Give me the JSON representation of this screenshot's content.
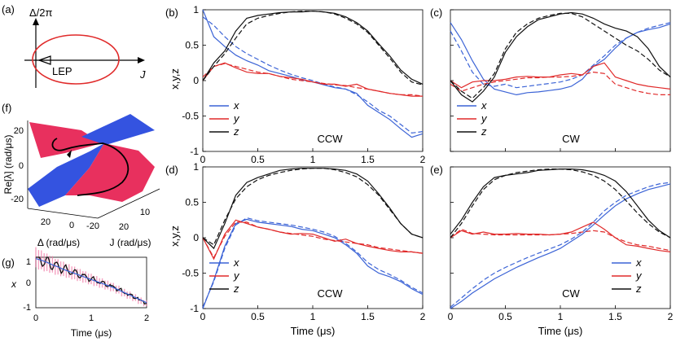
{
  "panel_labels": {
    "a": "(a)",
    "b": "(b)",
    "c": "(c)",
    "d": "(d)",
    "e": "(e)",
    "f": "(f)",
    "g": "(g)"
  },
  "colors": {
    "x": "#3b63d6",
    "y": "#e02a2a",
    "z": "#111111",
    "ellipse": "#e02a2a",
    "surface_red": "#e8305e",
    "surface_blue": "#3453e0",
    "pink": "#f07aa6"
  },
  "panel_a": {
    "ylabel": "Δ/2π",
    "xlabel": "J",
    "marker_label": "LEP"
  },
  "panel_f": {
    "zlabel": "Re[λ] (rad/μs)",
    "z_ticks": [
      "20",
      "0",
      "-20"
    ],
    "delta_ticks": [
      "20",
      "0",
      "-20"
    ],
    "j_ticks": [
      "10",
      "20"
    ],
    "delta_label": "Δ (rad/μs)",
    "j_label": "J (rad/μs)"
  },
  "panel_g": {
    "ylabel": "x",
    "xlabel": "Time (μs)",
    "y_ticks": [
      "1",
      "0",
      "-1"
    ],
    "x_ticks": [
      "0",
      "1",
      "2"
    ]
  },
  "chart_data": [
    {
      "id": "b",
      "type": "line",
      "direction_label": "CCW",
      "xlabel": "",
      "ylabel": "x,y,z",
      "xlim": [
        0,
        2
      ],
      "ylim": [
        -1,
        1
      ],
      "x_ticks": [
        "0",
        "0.5",
        "1",
        "1.5",
        "2"
      ],
      "y_ticks": [
        "1",
        "0.5",
        "0",
        "-0.5",
        "-1"
      ],
      "legend": [
        "x",
        "y",
        "z"
      ],
      "legend_position": "bottom-left",
      "x": [
        0,
        0.1,
        0.2,
        0.3,
        0.4,
        0.5,
        0.6,
        0.7,
        0.8,
        0.9,
        1.0,
        1.1,
        1.2,
        1.3,
        1.4,
        1.5,
        1.6,
        1.7,
        1.8,
        1.9,
        2.0
      ],
      "series": [
        {
          "name": "x",
          "style": "solid",
          "values": [
            1.0,
            0.62,
            0.48,
            0.36,
            0.28,
            0.22,
            0.14,
            0.1,
            0.06,
            0.01,
            -0.02,
            -0.06,
            -0.1,
            -0.12,
            -0.18,
            -0.35,
            -0.45,
            -0.55,
            -0.68,
            -0.8,
            -0.75
          ]
        },
        {
          "name": "x",
          "style": "dashed",
          "values": [
            0.9,
            0.78,
            0.62,
            0.48,
            0.38,
            0.3,
            0.22,
            0.15,
            0.09,
            0.04,
            0.0,
            -0.05,
            -0.09,
            -0.12,
            -0.2,
            -0.3,
            -0.42,
            -0.5,
            -0.62,
            -0.74,
            -0.72
          ]
        },
        {
          "name": "y",
          "style": "solid",
          "values": [
            0.0,
            0.2,
            0.25,
            0.18,
            0.12,
            0.1,
            0.1,
            0.06,
            0.04,
            0.02,
            -0.02,
            -0.05,
            -0.05,
            -0.08,
            -0.05,
            -0.12,
            -0.15,
            -0.18,
            -0.2,
            -0.22,
            -0.22
          ]
        },
        {
          "name": "y",
          "style": "dashed",
          "values": [
            0.05,
            0.2,
            0.24,
            0.2,
            0.16,
            0.12,
            0.1,
            0.06,
            0.02,
            0.0,
            -0.02,
            -0.04,
            -0.06,
            -0.07,
            -0.1,
            -0.12,
            -0.15,
            -0.18,
            -0.2,
            -0.2,
            -0.22
          ]
        },
        {
          "name": "z",
          "style": "solid",
          "values": [
            0.0,
            0.25,
            0.42,
            0.7,
            0.88,
            0.92,
            0.94,
            0.96,
            0.97,
            0.97,
            0.98,
            0.97,
            0.95,
            0.9,
            0.82,
            0.7,
            0.52,
            0.35,
            0.15,
            0.02,
            -0.05
          ]
        },
        {
          "name": "z",
          "style": "dashed",
          "values": [
            0.0,
            0.2,
            0.38,
            0.6,
            0.8,
            0.88,
            0.92,
            0.95,
            0.97,
            0.98,
            0.98,
            0.97,
            0.94,
            0.88,
            0.8,
            0.68,
            0.5,
            0.32,
            0.12,
            -0.02,
            -0.06
          ]
        }
      ]
    },
    {
      "id": "c",
      "type": "line",
      "direction_label": "CW",
      "xlabel": "",
      "ylabel": "",
      "xlim": [
        0,
        2
      ],
      "ylim": [
        -1,
        1
      ],
      "x_ticks": [],
      "y_ticks": [],
      "legend": [
        "x",
        "y",
        "z"
      ],
      "legend_position": "bottom-left",
      "x": [
        0,
        0.1,
        0.2,
        0.3,
        0.4,
        0.5,
        0.6,
        0.7,
        0.8,
        0.9,
        1.0,
        1.1,
        1.2,
        1.3,
        1.4,
        1.5,
        1.6,
        1.7,
        1.8,
        1.9,
        2.0
      ],
      "series": [
        {
          "name": "x",
          "style": "solid",
          "values": [
            0.82,
            0.58,
            0.28,
            0.02,
            -0.12,
            -0.16,
            -0.2,
            -0.17,
            -0.16,
            -0.14,
            -0.12,
            -0.08,
            0.02,
            0.2,
            0.3,
            0.46,
            0.6,
            0.68,
            0.72,
            0.75,
            0.8
          ]
        },
        {
          "name": "x",
          "style": "dashed",
          "values": [
            0.7,
            0.42,
            0.12,
            -0.05,
            -0.08,
            -0.05,
            -0.1,
            -0.08,
            -0.06,
            -0.04,
            -0.02,
            0.02,
            0.08,
            0.22,
            0.35,
            0.5,
            0.6,
            0.68,
            0.74,
            0.78,
            0.82
          ]
        },
        {
          "name": "y",
          "style": "solid",
          "values": [
            0.0,
            -0.1,
            -0.02,
            0.0,
            0.0,
            0.02,
            0.05,
            0.06,
            0.05,
            0.05,
            0.08,
            0.1,
            0.08,
            0.2,
            0.25,
            0.05,
            0.0,
            -0.05,
            -0.08,
            -0.1,
            -0.12
          ]
        },
        {
          "name": "y",
          "style": "dashed",
          "values": [
            -0.05,
            -0.15,
            -0.1,
            -0.05,
            -0.02,
            0.0,
            0.02,
            0.04,
            0.04,
            0.05,
            0.05,
            0.06,
            0.08,
            0.12,
            0.1,
            -0.05,
            -0.1,
            -0.15,
            -0.18,
            -0.2,
            -0.2
          ]
        },
        {
          "name": "z",
          "style": "solid",
          "values": [
            0.0,
            -0.2,
            -0.3,
            -0.15,
            0.05,
            0.4,
            0.62,
            0.76,
            0.86,
            0.9,
            0.94,
            0.96,
            0.94,
            0.88,
            0.8,
            0.74,
            0.7,
            0.62,
            0.45,
            0.2,
            0.05
          ]
        },
        {
          "name": "z",
          "style": "dashed",
          "values": [
            0.0,
            -0.15,
            -0.25,
            -0.1,
            0.1,
            0.45,
            0.68,
            0.8,
            0.88,
            0.92,
            0.95,
            0.95,
            0.9,
            0.8,
            0.7,
            0.6,
            0.5,
            0.42,
            0.3,
            0.15,
            0.05
          ]
        }
      ]
    },
    {
      "id": "d",
      "type": "line",
      "direction_label": "CCW",
      "xlabel": "Time (μs)",
      "ylabel": "x,y,z",
      "xlim": [
        0,
        2
      ],
      "ylim": [
        -1,
        1
      ],
      "x_ticks": [
        "0",
        "0.5",
        "1",
        "1.5",
        "2"
      ],
      "y_ticks": [
        "1",
        "0.5",
        "0",
        "-0.5",
        "-1"
      ],
      "legend": [
        "x",
        "y",
        "z"
      ],
      "legend_position": "bottom-left",
      "x": [
        0,
        0.1,
        0.2,
        0.3,
        0.4,
        0.5,
        0.6,
        0.7,
        0.8,
        0.9,
        1.0,
        1.1,
        1.2,
        1.3,
        1.4,
        1.5,
        1.6,
        1.7,
        1.8,
        1.9,
        2.0
      ],
      "series": [
        {
          "name": "x",
          "style": "solid",
          "values": [
            -1.0,
            -0.6,
            -0.12,
            0.2,
            0.26,
            0.22,
            0.2,
            0.18,
            0.16,
            0.12,
            0.1,
            0.05,
            0.0,
            -0.1,
            -0.22,
            -0.4,
            -0.5,
            -0.55,
            -0.62,
            -0.72,
            -0.8
          ]
        },
        {
          "name": "x",
          "style": "dashed",
          "values": [
            -0.98,
            -0.62,
            -0.15,
            0.18,
            0.28,
            0.24,
            0.22,
            0.2,
            0.18,
            0.15,
            0.12,
            0.08,
            0.02,
            -0.08,
            -0.2,
            -0.35,
            -0.45,
            -0.52,
            -0.6,
            -0.7,
            -0.78
          ]
        },
        {
          "name": "y",
          "style": "solid",
          "values": [
            0.0,
            -0.3,
            0.05,
            0.25,
            0.2,
            0.15,
            0.12,
            0.08,
            0.05,
            0.06,
            0.05,
            0.0,
            -0.05,
            -0.02,
            -0.08,
            -0.12,
            -0.15,
            -0.18,
            -0.2,
            -0.2,
            -0.22
          ]
        },
        {
          "name": "y",
          "style": "dashed",
          "values": [
            0.0,
            -0.28,
            0.02,
            0.22,
            0.22,
            0.15,
            0.12,
            0.08,
            0.06,
            0.04,
            0.02,
            -0.02,
            -0.04,
            -0.06,
            -0.08,
            -0.1,
            -0.14,
            -0.16,
            -0.18,
            -0.2,
            -0.22
          ]
        },
        {
          "name": "z",
          "style": "solid",
          "values": [
            0.0,
            -0.15,
            0.2,
            0.6,
            0.78,
            0.85,
            0.9,
            0.95,
            0.97,
            0.98,
            0.98,
            0.98,
            0.97,
            0.95,
            0.9,
            0.8,
            0.62,
            0.42,
            0.2,
            0.05,
            0.0
          ]
        },
        {
          "name": "z",
          "style": "dashed",
          "values": [
            0.0,
            -0.1,
            0.25,
            0.55,
            0.72,
            0.82,
            0.88,
            0.92,
            0.95,
            0.97,
            0.98,
            0.98,
            0.96,
            0.92,
            0.86,
            0.75,
            0.6,
            0.4,
            0.2,
            0.05,
            0.0
          ]
        }
      ]
    },
    {
      "id": "e",
      "type": "line",
      "direction_label": "CW",
      "xlabel": "Time (μs)",
      "ylabel": "",
      "xlim": [
        0,
        2
      ],
      "ylim": [
        -1,
        1
      ],
      "x_ticks": [
        "0",
        "0.5",
        "1",
        "1.5",
        "2"
      ],
      "y_ticks": [],
      "legend": [
        "x",
        "y",
        "z"
      ],
      "legend_position": "bottom-right",
      "x": [
        0,
        0.1,
        0.2,
        0.3,
        0.4,
        0.5,
        0.6,
        0.7,
        0.8,
        0.9,
        1.0,
        1.1,
        1.2,
        1.3,
        1.4,
        1.5,
        1.6,
        1.7,
        1.8,
        1.9,
        2.0
      ],
      "series": [
        {
          "name": "x",
          "style": "solid",
          "values": [
            -1.0,
            -0.9,
            -0.78,
            -0.68,
            -0.58,
            -0.5,
            -0.42,
            -0.35,
            -0.28,
            -0.22,
            -0.15,
            -0.05,
            0.05,
            0.18,
            0.32,
            0.45,
            0.55,
            0.62,
            0.68,
            0.72,
            0.76
          ]
        },
        {
          "name": "x",
          "style": "dashed",
          "values": [
            -0.98,
            -0.85,
            -0.72,
            -0.6,
            -0.5,
            -0.42,
            -0.35,
            -0.28,
            -0.22,
            -0.16,
            -0.1,
            -0.02,
            0.08,
            0.22,
            0.38,
            0.5,
            0.6,
            0.66,
            0.72,
            0.76,
            0.78
          ]
        },
        {
          "name": "y",
          "style": "solid",
          "values": [
            0.0,
            0.1,
            0.05,
            0.08,
            0.05,
            0.05,
            0.06,
            0.05,
            0.05,
            0.04,
            0.05,
            0.08,
            0.15,
            0.22,
            0.12,
            0.0,
            -0.1,
            -0.12,
            -0.15,
            -0.18,
            -0.2
          ]
        },
        {
          "name": "y",
          "style": "dashed",
          "values": [
            0.0,
            0.12,
            0.06,
            0.05,
            0.04,
            0.04,
            0.04,
            0.04,
            0.04,
            0.04,
            0.05,
            0.06,
            0.08,
            0.1,
            0.08,
            0.0,
            -0.06,
            -0.1,
            -0.12,
            -0.15,
            -0.18
          ]
        },
        {
          "name": "z",
          "style": "solid",
          "values": [
            0.05,
            0.25,
            0.5,
            0.72,
            0.85,
            0.88,
            0.9,
            0.92,
            0.95,
            0.96,
            0.97,
            0.97,
            0.96,
            0.93,
            0.88,
            0.8,
            0.65,
            0.45,
            0.25,
            0.1,
            0.0
          ]
        },
        {
          "name": "z",
          "style": "dashed",
          "values": [
            0.0,
            0.2,
            0.45,
            0.68,
            0.82,
            0.88,
            0.92,
            0.94,
            0.96,
            0.97,
            0.97,
            0.96,
            0.93,
            0.88,
            0.8,
            0.68,
            0.52,
            0.35,
            0.2,
            0.08,
            0.0
          ]
        }
      ]
    },
    {
      "id": "g",
      "type": "line",
      "xlabel": "Time (μs)",
      "ylabel": "x",
      "xlim": [
        0,
        2
      ],
      "ylim": [
        -1,
        1
      ],
      "x": [
        0,
        0.1,
        0.2,
        0.3,
        0.4,
        0.5,
        0.6,
        0.7,
        0.8,
        0.9,
        1.0,
        1.1,
        1.2,
        1.3,
        1.4,
        1.5,
        1.6,
        1.7,
        1.8,
        1.9,
        2.0
      ],
      "series": [
        {
          "name": "x (black)",
          "style": "solid",
          "values": [
            1.0,
            0.9,
            0.8,
            0.72,
            0.62,
            0.54,
            0.46,
            0.38,
            0.3,
            0.22,
            0.14,
            0.06,
            -0.02,
            -0.1,
            -0.18,
            -0.28,
            -0.4,
            -0.5,
            -0.6,
            -0.72,
            -0.82
          ]
        },
        {
          "name": "x (blue)",
          "style": "solid",
          "values": [
            0.95,
            0.88,
            0.8,
            0.7,
            0.62,
            0.52,
            0.44,
            0.36,
            0.28,
            0.2,
            0.12,
            0.04,
            -0.04,
            -0.12,
            -0.2,
            -0.3,
            -0.4,
            -0.5,
            -0.6,
            -0.7,
            -0.8
          ]
        }
      ]
    }
  ]
}
